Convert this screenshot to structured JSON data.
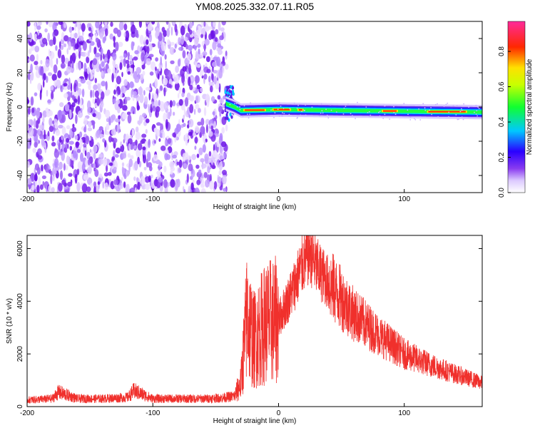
{
  "chart_data": [
    {
      "type": "heatmap",
      "title": "YM08.2025.332.07.11.R05",
      "xlabel": "Height of straight line (km)",
      "ylabel": "Frequency (Hz)",
      "xlim": [
        -200,
        162
      ],
      "ylim": [
        -50,
        50
      ],
      "x_ticks": [
        -200,
        -100,
        0,
        100
      ],
      "x_tick_labels": [
        "-200",
        "-100",
        "0",
        "100"
      ],
      "y_ticks": [
        -40,
        -20,
        0,
        20,
        40
      ],
      "y_tick_labels": [
        "-40",
        "-20",
        "0",
        "20",
        "40"
      ],
      "noise_region_x": [
        -200,
        -40
      ],
      "signal_line": {
        "frequency_hz": [
          [
            -42,
            2
          ],
          [
            -35,
            0
          ],
          [
            -30,
            -2
          ],
          [
            0,
            -1.5
          ],
          [
            50,
            -2
          ],
          [
            162,
            -3
          ]
        ],
        "peak_segments_x": [
          [
            -28,
            -10
          ],
          [
            -5,
            10
          ],
          [
            15,
            20
          ],
          [
            82,
            95
          ],
          [
            118,
            150
          ]
        ]
      },
      "colorbar": {
        "label": "Normalized spectral amplitude",
        "range": [
          0,
          0.97
        ],
        "ticks": [
          0.0,
          0.2,
          0.4,
          0.6,
          0.8
        ],
        "tick_labels": [
          "0.0",
          "0.2",
          "0.4",
          "0.6",
          "0.8"
        ]
      }
    },
    {
      "type": "line",
      "xlabel": "Height of straight line (km)",
      "ylabel": "SNR (10 * v/v)",
      "xlim": [
        -200,
        162
      ],
      "ylim": [
        0,
        6500
      ],
      "x_ticks": [
        -200,
        -100,
        0,
        100
      ],
      "x_tick_labels": [
        "-200",
        "-100",
        "0",
        "100"
      ],
      "y_ticks": [
        0,
        2000,
        4000,
        6000
      ],
      "y_tick_labels": [
        "0",
        "2000",
        "4000",
        "6000"
      ],
      "series": [
        {
          "name": "SNR",
          "color": "#f0302c",
          "x": [
            -200,
            -180,
            -175,
            -160,
            -140,
            -120,
            -115,
            -100,
            -80,
            -60,
            -45,
            -35,
            -30,
            -25,
            -20,
            -10,
            0,
            10,
            20,
            25,
            30,
            40,
            60,
            80,
            100,
            120,
            140,
            162
          ],
          "y": [
            250,
            300,
            550,
            300,
            300,
            350,
            600,
            300,
            300,
            300,
            330,
            400,
            900,
            3500,
            2500,
            3200,
            3300,
            4300,
            5500,
            5900,
            5300,
            4700,
            3500,
            2700,
            2000,
            1600,
            1250,
            900
          ]
        }
      ]
    }
  ]
}
